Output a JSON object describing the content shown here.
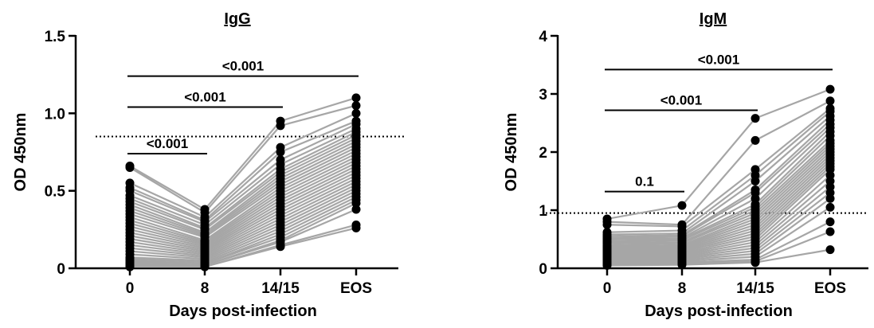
{
  "chart_data": [
    {
      "type": "scatter",
      "title": "IgG",
      "xlabel": "Days post-infection",
      "ylabel": "OD 450nm",
      "categories": [
        "0",
        "8",
        "14/15",
        "EOS"
      ],
      "ylim": [
        0,
        1.5
      ],
      "yticks": [
        {
          "value": 0,
          "label": "0"
        },
        {
          "value": 0.5,
          "label": "0.5"
        },
        {
          "value": 1.0,
          "label": "1.0"
        },
        {
          "value": 1.5,
          "label": "1.5"
        }
      ],
      "threshold": 0.85,
      "comparisons": [
        {
          "from": 0,
          "to": 1,
          "y": 0.74,
          "label": "<0.001"
        },
        {
          "from": 0,
          "to": 2,
          "y": 1.04,
          "label": "<0.001"
        },
        {
          "from": 0,
          "to": 3,
          "y": 1.24,
          "label": "<0.001"
        }
      ],
      "subjects": [
        [
          0.66,
          0.38,
          0.95,
          1.1
        ],
        [
          0.65,
          0.36,
          0.92,
          1.05
        ],
        [
          0.55,
          0.33,
          0.78,
          1.0
        ],
        [
          0.52,
          0.31,
          0.75,
          0.95
        ],
        [
          0.5,
          0.3,
          0.7,
          0.93
        ],
        [
          0.47,
          0.28,
          0.67,
          0.9
        ],
        [
          0.45,
          0.26,
          0.64,
          0.88
        ],
        [
          0.43,
          0.25,
          0.62,
          0.86
        ],
        [
          0.41,
          0.23,
          0.6,
          0.84
        ],
        [
          0.39,
          0.22,
          0.58,
          0.82
        ],
        [
          0.37,
          0.21,
          0.56,
          0.8
        ],
        [
          0.35,
          0.2,
          0.54,
          0.78
        ],
        [
          0.33,
          0.18,
          0.52,
          0.76
        ],
        [
          0.31,
          0.17,
          0.5,
          0.74
        ],
        [
          0.29,
          0.16,
          0.48,
          0.72
        ],
        [
          0.27,
          0.15,
          0.46,
          0.7
        ],
        [
          0.25,
          0.14,
          0.44,
          0.68
        ],
        [
          0.23,
          0.13,
          0.42,
          0.66
        ],
        [
          0.21,
          0.12,
          0.4,
          0.64
        ],
        [
          0.19,
          0.11,
          0.38,
          0.62
        ],
        [
          0.17,
          0.1,
          0.36,
          0.6
        ],
        [
          0.15,
          0.09,
          0.34,
          0.58
        ],
        [
          0.13,
          0.08,
          0.32,
          0.56
        ],
        [
          0.11,
          0.07,
          0.3,
          0.54
        ],
        [
          0.09,
          0.06,
          0.28,
          0.52
        ],
        [
          0.07,
          0.05,
          0.26,
          0.5
        ],
        [
          0.06,
          0.04,
          0.24,
          0.48
        ],
        [
          0.05,
          0.03,
          0.22,
          0.46
        ],
        [
          0.04,
          0.03,
          0.2,
          0.44
        ],
        [
          0.03,
          0.02,
          0.18,
          0.42
        ],
        [
          0.02,
          0.02,
          0.17,
          0.38
        ],
        [
          0.01,
          0.01,
          0.15,
          0.28
        ],
        [
          0.01,
          0.01,
          0.14,
          0.26
        ]
      ]
    },
    {
      "type": "scatter",
      "title": "IgM",
      "xlabel": "Days post-infection",
      "ylabel": "OD 450nm",
      "categories": [
        "0",
        "8",
        "14/15",
        "EOS"
      ],
      "ylim": [
        0,
        4
      ],
      "yticks": [
        {
          "value": 0,
          "label": "0"
        },
        {
          "value": 1,
          "label": "1"
        },
        {
          "value": 2,
          "label": "2"
        },
        {
          "value": 3,
          "label": "3"
        },
        {
          "value": 4,
          "label": "4"
        }
      ],
      "threshold": 0.95,
      "comparisons": [
        {
          "from": 0,
          "to": 1,
          "y": 1.32,
          "label": "0.1"
        },
        {
          "from": 0,
          "to": 2,
          "y": 2.72,
          "label": "<0.001"
        },
        {
          "from": 0,
          "to": 3,
          "y": 3.42,
          "label": "<0.001"
        }
      ],
      "subjects": [
        [
          0.85,
          1.08,
          2.58,
          3.08
        ],
        [
          0.8,
          0.75,
          2.2,
          2.88
        ],
        [
          0.75,
          0.72,
          1.7,
          2.75
        ],
        [
          0.62,
          0.65,
          1.6,
          2.7
        ],
        [
          0.58,
          0.6,
          1.5,
          2.62
        ],
        [
          0.55,
          0.57,
          1.35,
          2.55
        ],
        [
          0.52,
          0.55,
          1.3,
          2.48
        ],
        [
          0.5,
          0.52,
          1.2,
          2.42
        ],
        [
          0.47,
          0.5,
          1.1,
          2.35
        ],
        [
          0.45,
          0.48,
          1.05,
          2.28
        ],
        [
          0.43,
          0.45,
          1.0,
          2.2
        ],
        [
          0.4,
          0.43,
          0.95,
          2.15
        ],
        [
          0.38,
          0.4,
          0.9,
          2.1
        ],
        [
          0.36,
          0.38,
          0.85,
          2.05
        ],
        [
          0.34,
          0.36,
          0.8,
          2.0
        ],
        [
          0.32,
          0.34,
          0.75,
          1.95
        ],
        [
          0.3,
          0.32,
          0.7,
          1.9
        ],
        [
          0.28,
          0.3,
          0.65,
          1.85
        ],
        [
          0.26,
          0.28,
          0.6,
          1.8
        ],
        [
          0.24,
          0.26,
          0.55,
          1.75
        ],
        [
          0.22,
          0.24,
          0.5,
          1.7
        ],
        [
          0.2,
          0.22,
          0.45,
          1.6
        ],
        [
          0.18,
          0.2,
          0.4,
          1.5
        ],
        [
          0.16,
          0.18,
          0.35,
          1.4
        ],
        [
          0.14,
          0.16,
          0.3,
          1.3
        ],
        [
          0.12,
          0.14,
          0.25,
          1.2
        ],
        [
          0.1,
          0.12,
          0.2,
          1.05
        ],
        [
          0.08,
          0.1,
          0.15,
          0.8
        ],
        [
          0.06,
          0.08,
          0.12,
          0.63
        ],
        [
          0.05,
          0.06,
          0.1,
          0.32
        ]
      ]
    }
  ],
  "colors": {
    "points": "#000000",
    "lines": "#a6a6a6",
    "axis": "#000000",
    "threshold": "#000000"
  }
}
